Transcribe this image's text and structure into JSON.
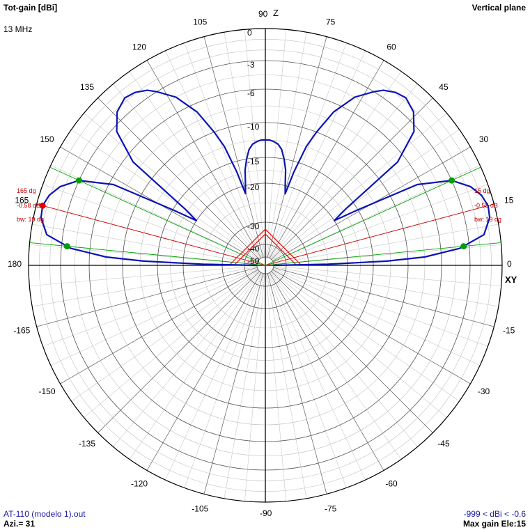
{
  "header": {
    "title": "Tot-gain [dBi]",
    "frequency": "13 MHz",
    "plane": "Vertical plane"
  },
  "footer": {
    "file": "AT-110 (modelo 1).out",
    "azimuth": "Azi.= 31",
    "range": "-999 < dBi < -0.6",
    "max_gain": "Max gain Ele:15"
  },
  "axes": {
    "top": "Z",
    "right": "XY"
  },
  "colors": {
    "pattern": "#0a14b4",
    "grid": "#a0a0a0",
    "axis": "#000000",
    "halfpower": "#00a000",
    "maxgain": "#e00000",
    "marker_text": "#c00000"
  },
  "markers": {
    "left": {
      "angle_label": "165 dg",
      "gain_label": "-0.58 dB",
      "bw_label": "bw: 19 dg"
    },
    "right": {
      "angle_label": "15 dg",
      "gain_label": "-0.58 dB",
      "bw_label": "bw: 19 dg"
    }
  },
  "chart_data": {
    "type": "polar",
    "title": "Tot-gain [dBi]",
    "plane": "Vertical plane",
    "frequency": "13 MHz",
    "angle_unit": "deg",
    "angle_labels": [
      "0",
      "15",
      "30",
      "45",
      "60",
      "75",
      "90",
      "105",
      "120",
      "135",
      "150",
      "165",
      "180",
      "-165",
      "-150",
      "-135",
      "-120",
      "-105",
      "-90",
      "-75",
      "-60",
      "-45",
      "-30",
      "-15"
    ],
    "radial_labels": [
      "0",
      "-3",
      "-6",
      "-10",
      "-15",
      "-20",
      "-30",
      "-40",
      "-50"
    ],
    "radial_ring_values_db": [
      0,
      -1,
      -2,
      -3,
      -4.5,
      -6,
      -8,
      -10,
      -12.5,
      -15,
      -17.5,
      -20,
      -25,
      -30,
      -40,
      -50
    ],
    "max_gain_db": -0.58,
    "max_gain_elevation_deg": 15,
    "beamwidth_deg": 19,
    "halfpower_elevations_deg": [
      5.5,
      24.5
    ],
    "series": [
      {
        "type": "line",
        "elevation_deg": [
          0,
          1,
          2,
          3,
          5,
          8,
          12,
          15,
          18,
          21,
          24.5,
          28,
          31,
          33,
          35,
          38,
          42,
          46,
          50,
          53,
          56,
          58,
          62,
          66,
          69,
          71,
          73,
          74.5,
          76,
          78,
          80,
          82,
          84,
          86,
          88,
          90
        ],
        "gain_db": [
          -50,
          -25,
          -13,
          -8,
          -4,
          -1.5,
          -0.7,
          -0.58,
          -0.9,
          -1.6,
          -3,
          -6.5,
          -15,
          -20,
          -17,
          -7,
          -3.5,
          -2.2,
          -1.7,
          -1.9,
          -2.4,
          -3,
          -4.5,
          -7,
          -10,
          -12.5,
          -17,
          -22,
          -20,
          -17,
          -15,
          -13.7,
          -13,
          -12.7,
          -12.5,
          -12.5
        ]
      }
    ]
  }
}
